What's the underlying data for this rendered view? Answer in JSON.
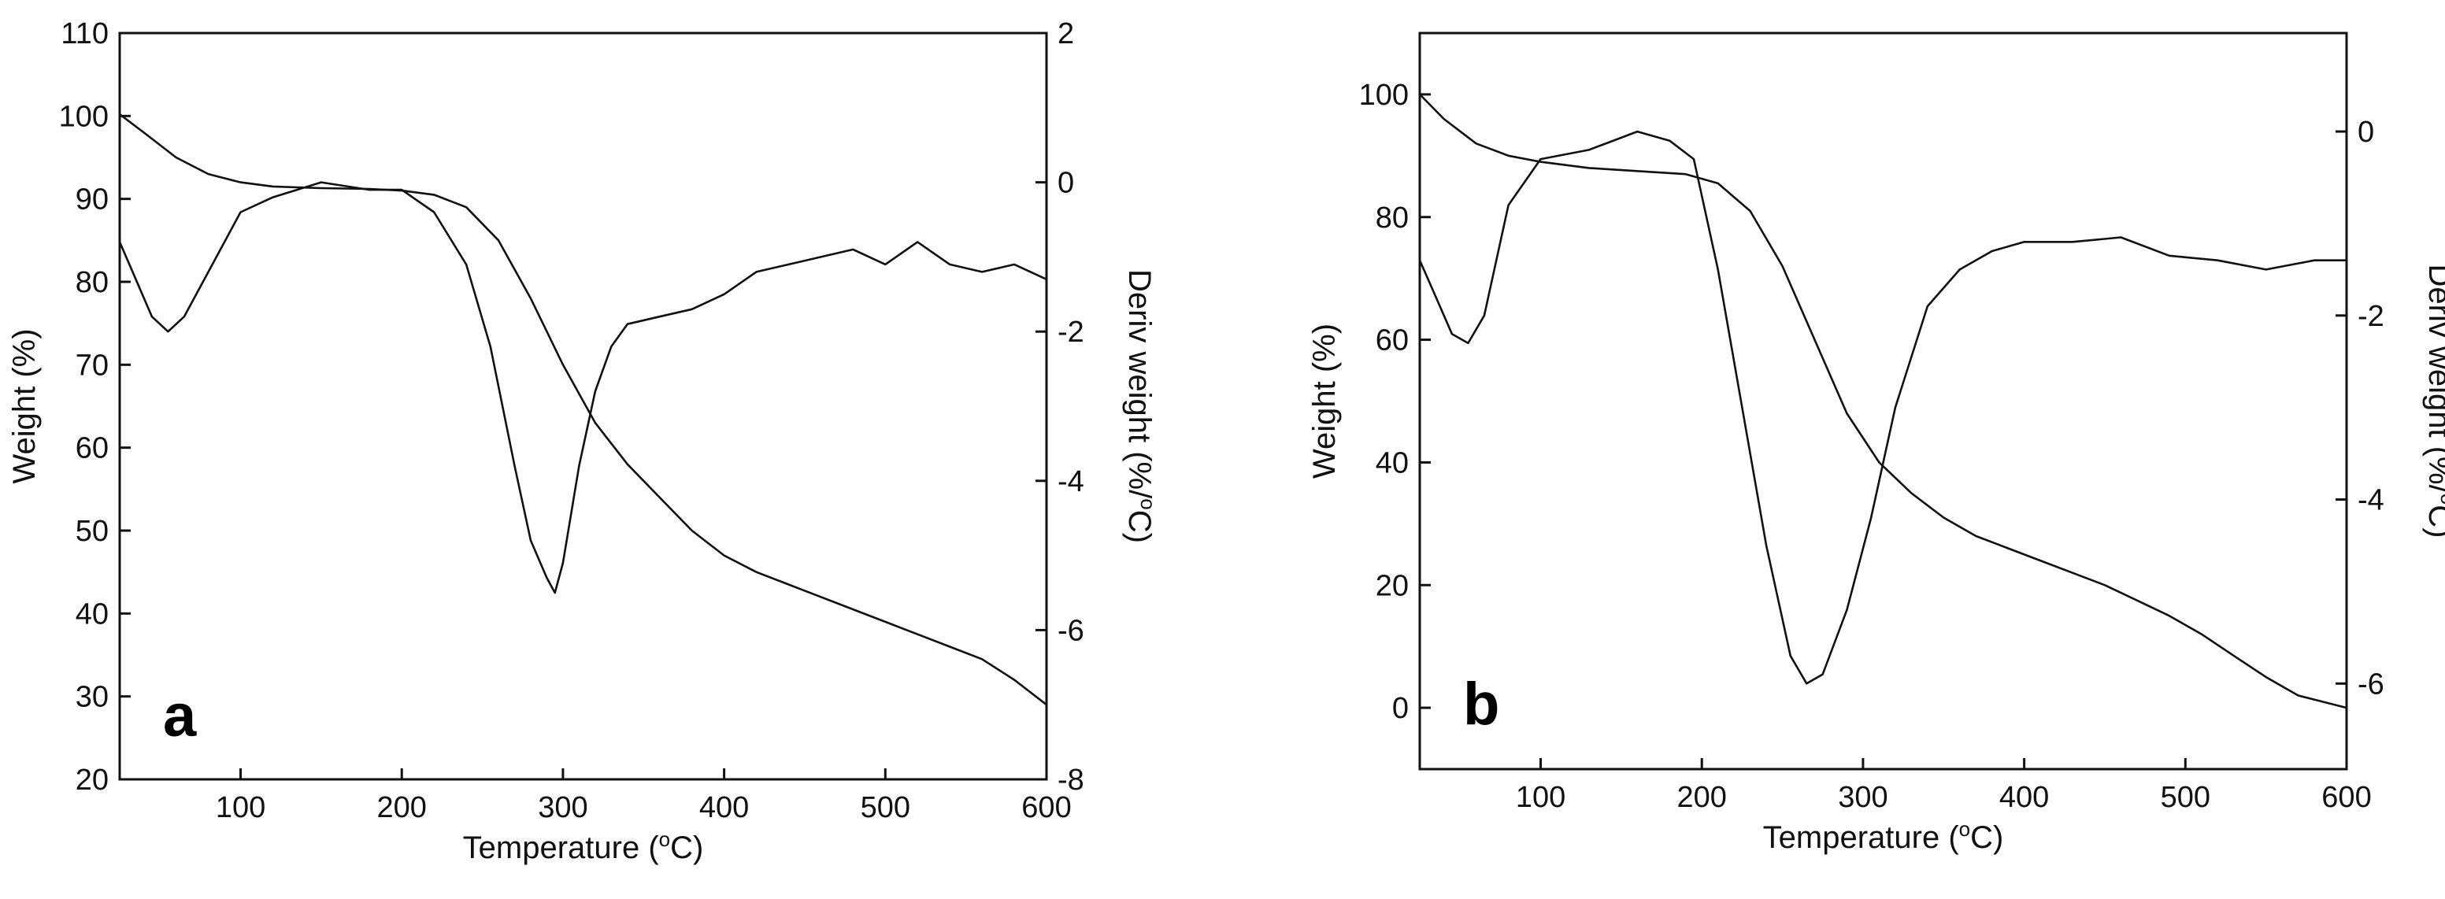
{
  "chart_data": [
    {
      "type": "line",
      "panel": "a",
      "xlabel": "Temperature (°C)",
      "ylabel_left": "Weight (%)",
      "ylabel_right": "Deriv weight (%/°C)",
      "xlim": [
        25,
        600
      ],
      "ylim_left": [
        20,
        110
      ],
      "ylim_right": [
        -8,
        2
      ],
      "xticks": [
        100,
        200,
        300,
        400,
        500,
        600
      ],
      "yticks_left": [
        20,
        30,
        40,
        50,
        60,
        70,
        80,
        90,
        100,
        110
      ],
      "yticks_right": [
        -8,
        -6,
        -4,
        -2,
        0,
        2
      ],
      "series": [
        {
          "axis": "left",
          "x": [
            25,
            40,
            60,
            80,
            100,
            120,
            150,
            180,
            200,
            220,
            240,
            260,
            280,
            300,
            320,
            340,
            360,
            380,
            400,
            420,
            440,
            460,
            480,
            500,
            520,
            540,
            560,
            580,
            600
          ],
          "y": [
            100.2,
            98,
            95,
            93,
            92,
            91.5,
            91.3,
            91.2,
            91,
            90.5,
            89,
            85,
            78,
            70,
            63,
            58,
            54,
            50,
            47,
            45,
            43.5,
            42,
            40.5,
            39,
            37.5,
            36,
            34.5,
            32,
            29
          ]
        },
        {
          "axis": "right",
          "x": [
            25,
            35,
            45,
            55,
            65,
            80,
            100,
            120,
            150,
            180,
            200,
            220,
            240,
            255,
            270,
            280,
            290,
            295,
            300,
            310,
            320,
            330,
            340,
            360,
            380,
            400,
            420,
            440,
            460,
            480,
            500,
            520,
            540,
            560,
            580,
            600
          ],
          "y": [
            -0.8,
            -1.3,
            -1.8,
            -2,
            -1.8,
            -1.2,
            -0.4,
            -0.2,
            0,
            -0.1,
            -0.1,
            -0.4,
            -1.1,
            -2.2,
            -3.8,
            -4.8,
            -5.3,
            -5.5,
            -5.1,
            -3.8,
            -2.8,
            -2.2,
            -1.9,
            -1.8,
            -1.7,
            -1.5,
            -1.2,
            -1.1,
            -1,
            -0.9,
            -1.1,
            -0.8,
            -1.1,
            -1.2,
            -1.1,
            -1.3
          ]
        }
      ]
    },
    {
      "type": "line",
      "panel": "b",
      "xlabel": "Temperature (°C)",
      "ylabel_left": "Weight (%)",
      "ylabel_right": "Deriv weight (%/°C)",
      "xlim": [
        25,
        600
      ],
      "ylim_left": [
        -10,
        110
      ],
      "ylim_right": [
        -6.93,
        1.07
      ],
      "xticks": [
        100,
        200,
        300,
        400,
        500,
        600
      ],
      "yticks_left": [
        0,
        20,
        40,
        60,
        80,
        100
      ],
      "yticks_right": [
        -6,
        -4,
        -2,
        0
      ],
      "series": [
        {
          "axis": "left",
          "x": [
            25,
            40,
            60,
            80,
            100,
            130,
            160,
            190,
            210,
            230,
            250,
            270,
            290,
            310,
            330,
            350,
            370,
            390,
            410,
            430,
            450,
            470,
            490,
            510,
            530,
            550,
            570,
            600
          ],
          "y": [
            100,
            96,
            92,
            90,
            89,
            88,
            87.5,
            87,
            85.5,
            81,
            72,
            60,
            48,
            40,
            35,
            31,
            28,
            26,
            24,
            22,
            20,
            17.5,
            15,
            12,
            8.5,
            5,
            2,
            0
          ]
        },
        {
          "axis": "right",
          "x": [
            25,
            35,
            45,
            55,
            65,
            80,
            100,
            130,
            160,
            180,
            195,
            210,
            225,
            240,
            255,
            265,
            275,
            290,
            305,
            320,
            340,
            360,
            380,
            400,
            430,
            460,
            490,
            520,
            550,
            580,
            600
          ],
          "y": [
            -1.4,
            -1.8,
            -2.2,
            -2.3,
            -2.0,
            -0.8,
            -0.3,
            -0.2,
            0,
            -0.1,
            -0.3,
            -1.5,
            -3.0,
            -4.5,
            -5.7,
            -6.0,
            -5.9,
            -5.2,
            -4.2,
            -3.0,
            -1.9,
            -1.5,
            -1.3,
            -1.2,
            -1.2,
            -1.15,
            -1.35,
            -1.4,
            -1.5,
            -1.4,
            -1.4
          ]
        }
      ]
    }
  ]
}
